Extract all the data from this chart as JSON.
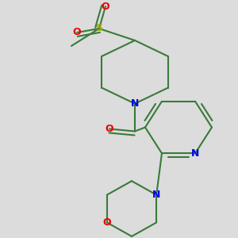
{
  "bg_color": "#dcdcdc",
  "bond_color": "#3a7a3a",
  "bond_width": 1.5,
  "n_color": "#0000ee",
  "o_color": "#ee0000",
  "s_color": "#aaaa00",
  "figsize": [
    3.0,
    3.0
  ],
  "dpi": 100,
  "xlim": [
    0,
    300
  ],
  "ylim": [
    0,
    300
  ]
}
